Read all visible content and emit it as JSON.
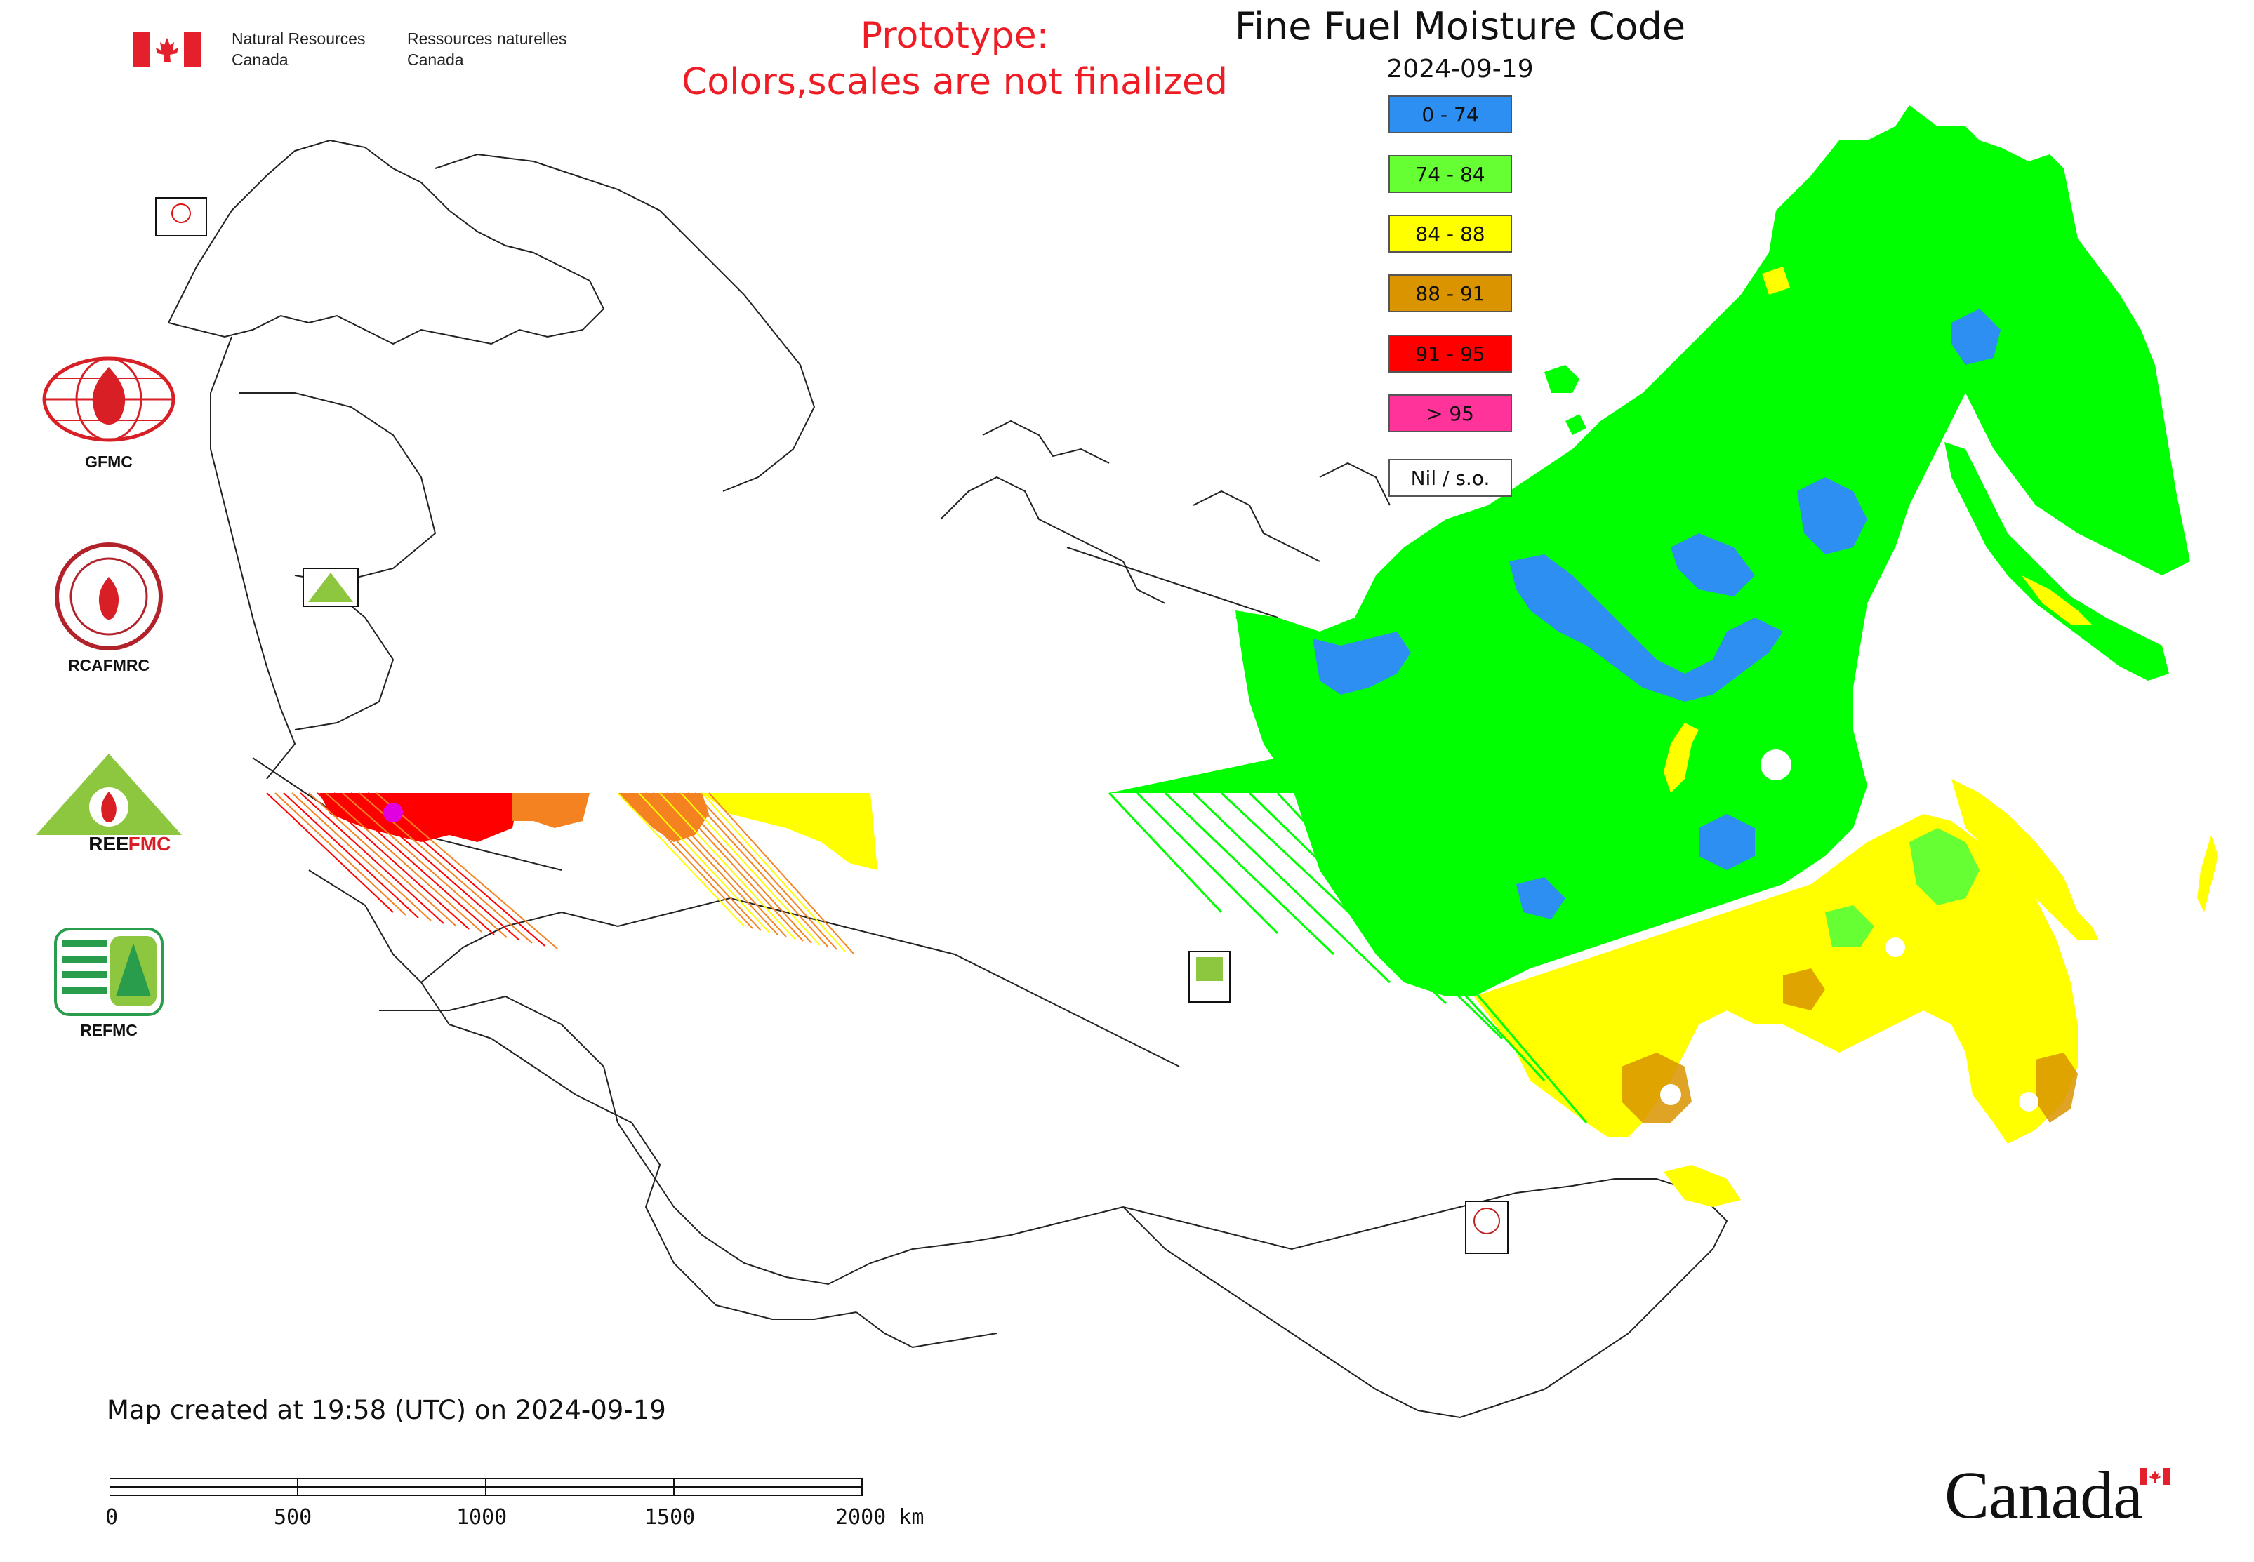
{
  "header": {
    "dept_en_line1": "Natural Resources",
    "dept_en_line2": "Canada",
    "dept_fr_line1": "Ressources naturelles",
    "dept_fr_line2": "Canada",
    "prototype_line1": "Prototype:",
    "prototype_line2": "Colors,scales are not finalized"
  },
  "map": {
    "title": "Fine Fuel Moisture Code",
    "date": "2024-09-19"
  },
  "legend": {
    "items": [
      {
        "label": "0 - 74",
        "color": "#2e8ff2"
      },
      {
        "label": "74 - 84",
        "color": "#66ff33"
      },
      {
        "label": "84 - 88",
        "color": "#ffff00"
      },
      {
        "label": "88 - 91",
        "color": "#d99400"
      },
      {
        "label": "91 - 95",
        "color": "#ff0000"
      },
      {
        "label": "> 95",
        "color": "#ff3399"
      },
      {
        "label": "Nil / s.o.",
        "color": "#ffffff"
      }
    ]
  },
  "logos": {
    "gfmc": "GFMC",
    "rcafmrc": "RCAFMRC",
    "reefmc": "REEFMC",
    "refmc": "REFMC"
  },
  "footer": {
    "created": "Map created at 19:58 (UTC) on 2024-09-19",
    "scale_labels": [
      "0",
      "500",
      "1000",
      "1500",
      "2000 km"
    ],
    "wordmark": "Canada"
  }
}
